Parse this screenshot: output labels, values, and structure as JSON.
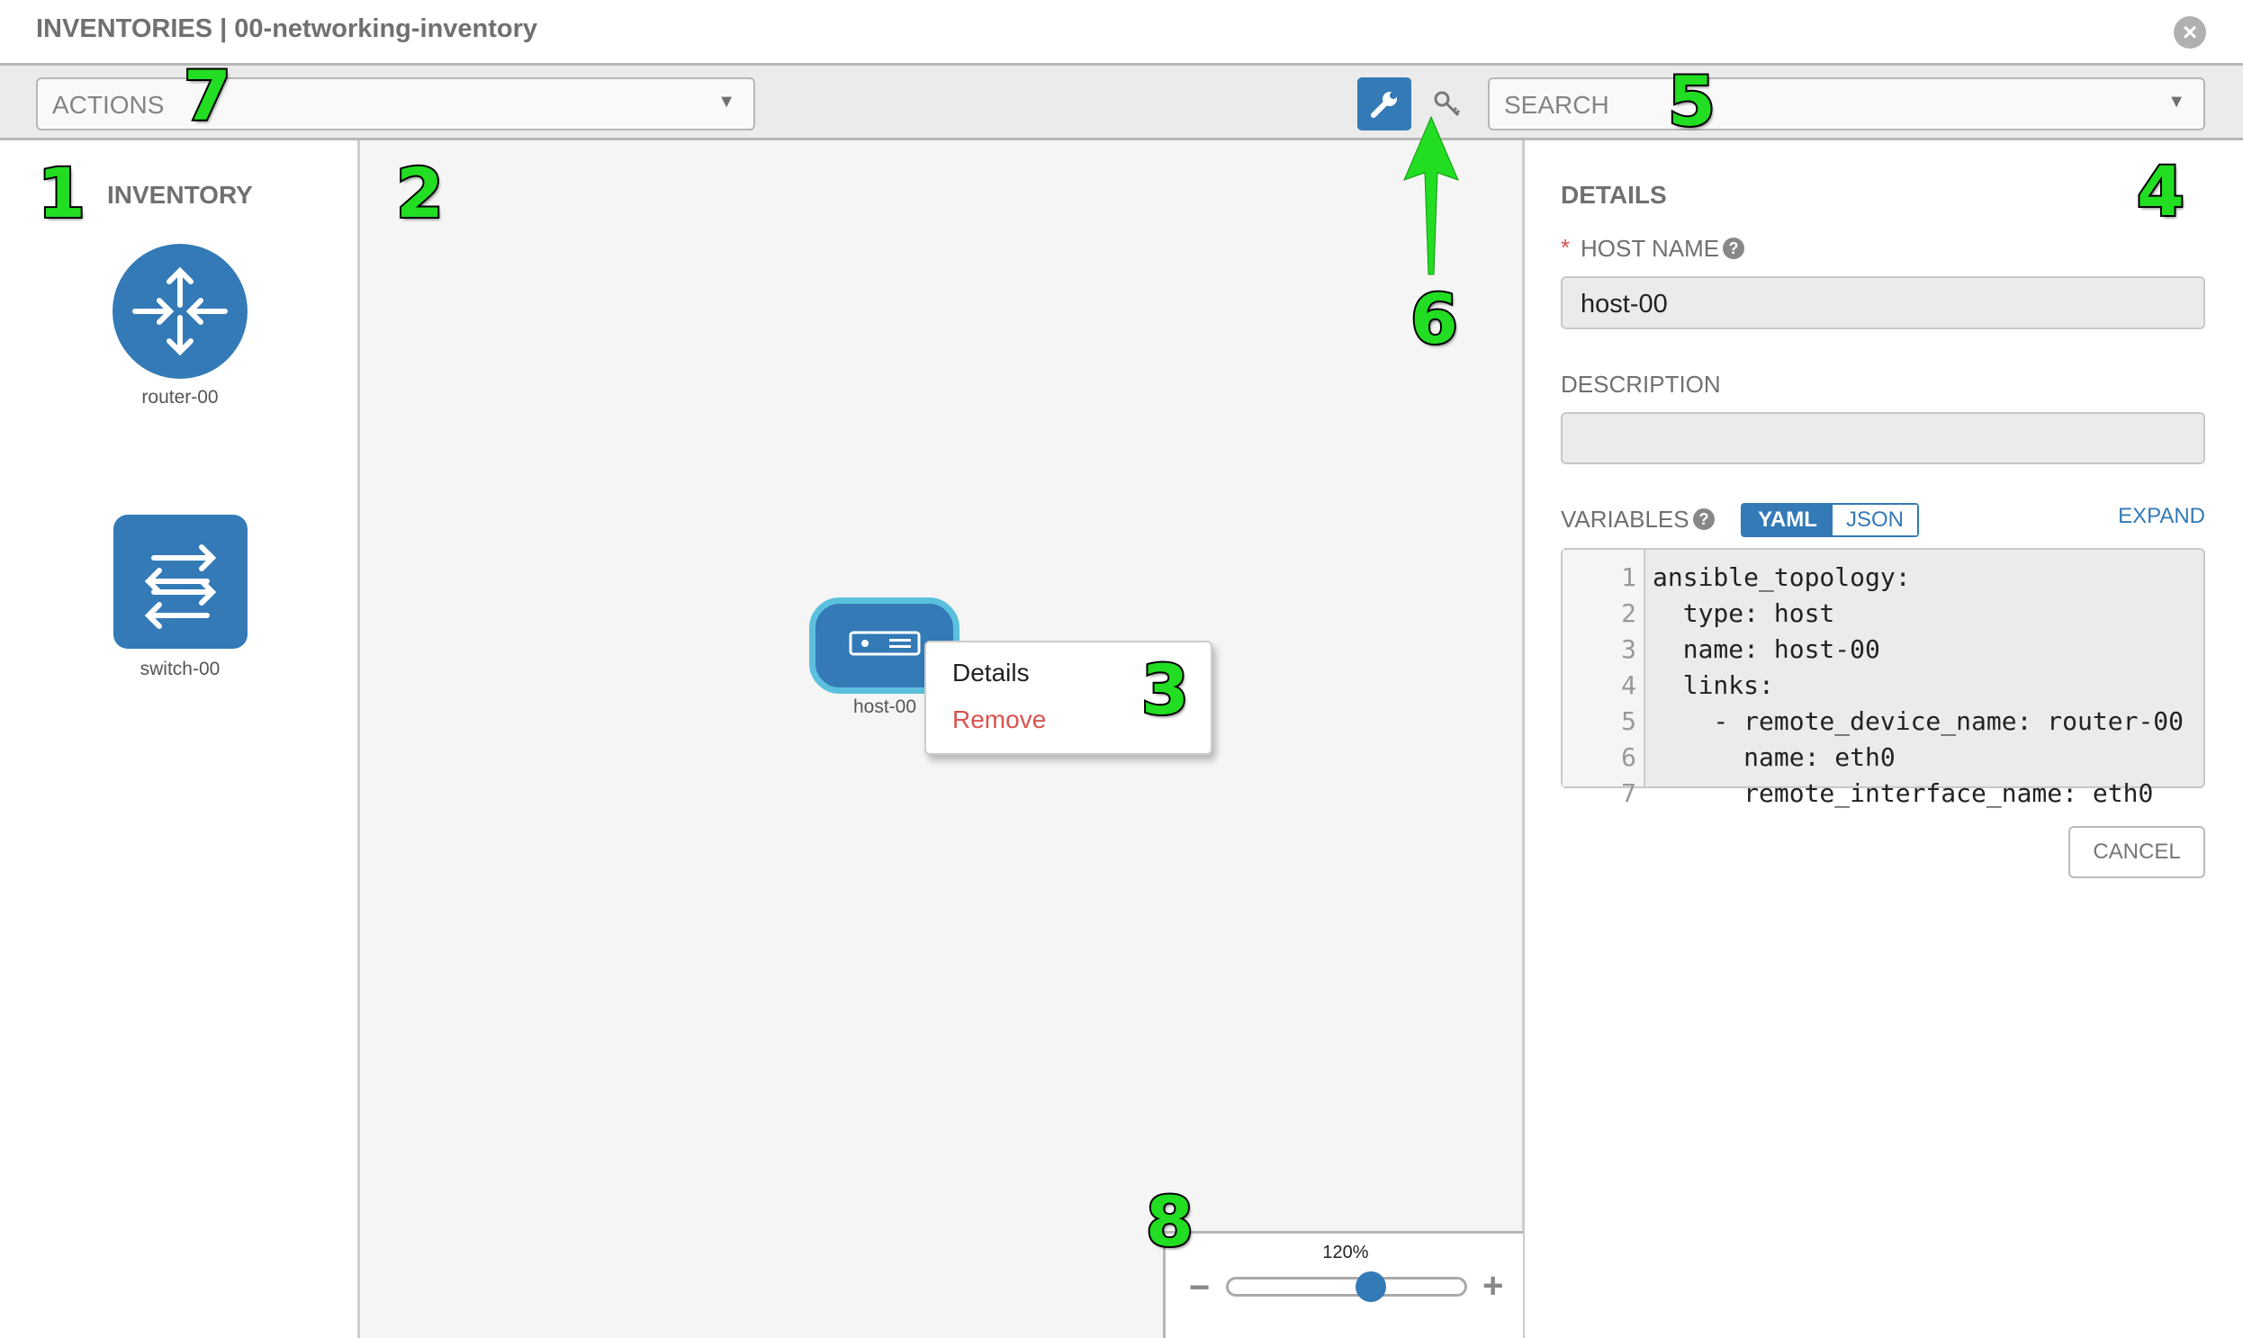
{
  "header": {
    "title": "INVENTORIES | 00-networking-inventory",
    "close_icon": "close-circle-icon"
  },
  "toolbar": {
    "actions_placeholder": "ACTIONS",
    "search_placeholder": "SEARCH",
    "wrench_icon": "wrench-icon",
    "key_icon": "key-icon",
    "accent": "#337ab7"
  },
  "inventory": {
    "title": "INVENTORY",
    "items": [
      {
        "label": "router-00",
        "icon": "router-icon"
      },
      {
        "label": "switch-00",
        "icon": "switch-icon"
      }
    ]
  },
  "canvas": {
    "host": {
      "label": "host-00",
      "icon": "server-icon",
      "selected": true
    },
    "context_menu": {
      "details": "Details",
      "remove": "Remove"
    }
  },
  "details": {
    "title": "DETAILS",
    "required_mark": "*",
    "host_name_label": "HOST NAME",
    "host_name_value": "host-00",
    "description_label": "DESCRIPTION",
    "description_value": "",
    "variables_label": "VARIABLES",
    "yaml": "YAML",
    "json": "JSON",
    "expand": "EXPAND",
    "cancel": "CANCEL",
    "code_lines": [
      {
        "n": "1",
        "text": "ansible_topology:"
      },
      {
        "n": "2",
        "text": "  type: host"
      },
      {
        "n": "3",
        "text": "  name: host-00"
      },
      {
        "n": "4",
        "text": "  links:"
      },
      {
        "n": "5",
        "text": "    - remote_device_name: router-00"
      },
      {
        "n": "6",
        "text": "      name: eth0"
      },
      {
        "n": "7",
        "text": "      remote_interface_name: eth0"
      }
    ]
  },
  "zoom": {
    "label": "120%",
    "level_fraction": 0.6,
    "minus": "−",
    "plus": "+"
  },
  "annotations": [
    "1",
    "2",
    "3",
    "4",
    "5",
    "6",
    "7",
    "8"
  ]
}
